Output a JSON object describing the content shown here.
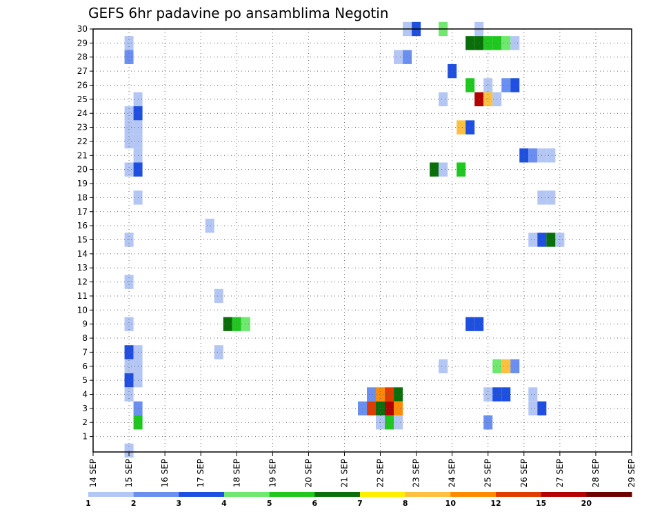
{
  "chart_data": {
    "type": "heatmap",
    "title": "GEFS 6hr padavine po ansamblima Negotin",
    "x_tick_labels": [
      "14 SEP",
      "15 SEP",
      "16 SEP",
      "17 SEP",
      "18 SEP",
      "19 SEP",
      "20 SEP",
      "21 SEP",
      "22 SEP",
      "23 SEP",
      "24 SEP",
      "25 SEP",
      "26 SEP",
      "27 SEP",
      "28 SEP",
      "29 SEP"
    ],
    "x_range_days": [
      14,
      29
    ],
    "y_tick_labels": [
      "1",
      "2",
      "3",
      "4",
      "5",
      "6",
      "7",
      "8",
      "9",
      "10",
      "11",
      "12",
      "13",
      "14",
      "15",
      "16",
      "17",
      "18",
      "19",
      "20",
      "21",
      "22",
      "23",
      "24",
      "25",
      "26",
      "27",
      "28",
      "29",
      "30"
    ],
    "y_range": [
      0,
      30
    ],
    "grid": true,
    "x_unit": "6-hour steps from 14 SEP 00",
    "colorbar": {
      "labels": [
        "1",
        "2",
        "3",
        "4",
        "5",
        "6",
        "7",
        "8",
        "10",
        "12",
        "15",
        "20"
      ],
      "colors": [
        "#b3c6f4",
        "#6b8ff0",
        "#1f4fe0",
        "#6ee86e",
        "#1ec81e",
        "#0a6e0a",
        "#ffee00",
        "#ffc040",
        "#ff8a00",
        "#e03c00",
        "#b40000",
        "#6e0000"
      ]
    },
    "cells": [
      {
        "step": 4,
        "member": 29,
        "value": 1.5
      },
      {
        "step": 4,
        "member": 28,
        "value": 2.5
      },
      {
        "step": 5,
        "member": 25,
        "value": 1.5
      },
      {
        "step": 4,
        "member": 24,
        "value": 1.5
      },
      {
        "step": 5,
        "member": 24,
        "value": 3.5
      },
      {
        "step": 4,
        "member": 23,
        "value": 1.5
      },
      {
        "step": 5,
        "member": 23,
        "value": 1.5
      },
      {
        "step": 4,
        "member": 22,
        "value": 1.5
      },
      {
        "step": 5,
        "member": 22,
        "value": 1.5
      },
      {
        "step": 5,
        "member": 21,
        "value": 1.5
      },
      {
        "step": 4,
        "member": 20,
        "value": 1.5
      },
      {
        "step": 5,
        "member": 20,
        "value": 3.5
      },
      {
        "step": 5,
        "member": 18,
        "value": 1.5
      },
      {
        "step": 4,
        "member": 15,
        "value": 1.5
      },
      {
        "step": 4,
        "member": 12,
        "value": 1.5
      },
      {
        "step": 4,
        "member": 9,
        "value": 1.5
      },
      {
        "step": 4,
        "member": 7,
        "value": 3.5
      },
      {
        "step": 5,
        "member": 7,
        "value": 1.5
      },
      {
        "step": 4,
        "member": 6,
        "value": 1.5
      },
      {
        "step": 5,
        "member": 6,
        "value": 1.5
      },
      {
        "step": 4,
        "member": 5,
        "value": 3.5
      },
      {
        "step": 5,
        "member": 5,
        "value": 1.5
      },
      {
        "step": 4,
        "member": 4,
        "value": 1.5
      },
      {
        "step": 5,
        "member": 3,
        "value": 2.5
      },
      {
        "step": 5,
        "member": 2,
        "value": 5.5
      },
      {
        "step": 4,
        "member": 0,
        "value": 1.5
      },
      {
        "step": 13,
        "member": 16,
        "value": 1.5
      },
      {
        "step": 14,
        "member": 11,
        "value": 1.5
      },
      {
        "step": 14,
        "member": 7,
        "value": 1.5
      },
      {
        "step": 15,
        "member": 9,
        "value": 6.5
      },
      {
        "step": 16,
        "member": 9,
        "value": 5.5
      },
      {
        "step": 17,
        "member": 9,
        "value": 4.5
      },
      {
        "step": 35,
        "member": 30,
        "value": 1.5
      },
      {
        "step": 36,
        "member": 30,
        "value": 3.5
      },
      {
        "step": 39,
        "member": 30,
        "value": 4.5
      },
      {
        "step": 43,
        "member": 30,
        "value": 1.5
      },
      {
        "step": 39,
        "member": 25,
        "value": 1.5
      },
      {
        "step": 40,
        "member": 27,
        "value": 3.5
      },
      {
        "step": 38,
        "member": 20,
        "value": 6.5
      },
      {
        "step": 39,
        "member": 20,
        "value": 1.5
      },
      {
        "step": 39,
        "member": 6,
        "value": 1.5
      },
      {
        "step": 34,
        "member": 28,
        "value": 1.5
      },
      {
        "step": 35,
        "member": 28,
        "value": 2.5
      },
      {
        "step": 41,
        "member": 23,
        "value": 9
      },
      {
        "step": 42,
        "member": 23,
        "value": 3.5
      },
      {
        "step": 41,
        "member": 20,
        "value": 5.5
      },
      {
        "step": 42,
        "member": 29,
        "value": 6.5
      },
      {
        "step": 43,
        "member": 29,
        "value": 6.5
      },
      {
        "step": 44,
        "member": 29,
        "value": 5.5
      },
      {
        "step": 45,
        "member": 29,
        "value": 5.5
      },
      {
        "step": 46,
        "member": 29,
        "value": 4.5
      },
      {
        "step": 47,
        "member": 29,
        "value": 1.5
      },
      {
        "step": 42,
        "member": 26,
        "value": 5.5
      },
      {
        "step": 44,
        "member": 26,
        "value": 1.5
      },
      {
        "step": 46,
        "member": 26,
        "value": 2.5
      },
      {
        "step": 47,
        "member": 26,
        "value": 3.5
      },
      {
        "step": 43,
        "member": 25,
        "value": 17
      },
      {
        "step": 44,
        "member": 25,
        "value": 9
      },
      {
        "step": 45,
        "member": 25,
        "value": 1.5
      },
      {
        "step": 48,
        "member": 21,
        "value": 3.5
      },
      {
        "step": 49,
        "member": 21,
        "value": 2.5
      },
      {
        "step": 50,
        "member": 21,
        "value": 1.5
      },
      {
        "step": 51,
        "member": 21,
        "value": 1.5
      },
      {
        "step": 50,
        "member": 18,
        "value": 1.5
      },
      {
        "step": 51,
        "member": 18,
        "value": 1.5
      },
      {
        "step": 49,
        "member": 15,
        "value": 1.5
      },
      {
        "step": 50,
        "member": 15,
        "value": 3.5
      },
      {
        "step": 51,
        "member": 15,
        "value": 6.5
      },
      {
        "step": 52,
        "member": 15,
        "value": 1.5
      },
      {
        "step": 42,
        "member": 9,
        "value": 3.5
      },
      {
        "step": 43,
        "member": 9,
        "value": 3.5
      },
      {
        "step": 45,
        "member": 6,
        "value": 4.5
      },
      {
        "step": 46,
        "member": 6,
        "value": 9
      },
      {
        "step": 47,
        "member": 6,
        "value": 2.5
      },
      {
        "step": 44,
        "member": 4,
        "value": 1.5
      },
      {
        "step": 45,
        "member": 4,
        "value": 3.5
      },
      {
        "step": 46,
        "member": 4,
        "value": 3.5
      },
      {
        "step": 49,
        "member": 4,
        "value": 1.5
      },
      {
        "step": 49,
        "member": 3,
        "value": 1.5
      },
      {
        "step": 50,
        "member": 3,
        "value": 3.5
      },
      {
        "step": 44,
        "member": 2,
        "value": 2.5
      },
      {
        "step": 31,
        "member": 4,
        "value": 2.5
      },
      {
        "step": 32,
        "member": 4,
        "value": 11
      },
      {
        "step": 33,
        "member": 4,
        "value": 13
      },
      {
        "step": 34,
        "member": 4,
        "value": 6.5
      },
      {
        "step": 30,
        "member": 3,
        "value": 2.5
      },
      {
        "step": 31,
        "member": 3,
        "value": 13
      },
      {
        "step": 32,
        "member": 3,
        "value": 6.5
      },
      {
        "step": 33,
        "member": 3,
        "value": 17
      },
      {
        "step": 34,
        "member": 3,
        "value": 11
      },
      {
        "step": 32,
        "member": 2,
        "value": 1.5
      },
      {
        "step": 33,
        "member": 2,
        "value": 5.5
      },
      {
        "step": 34,
        "member": 2,
        "value": 1.5
      }
    ]
  }
}
